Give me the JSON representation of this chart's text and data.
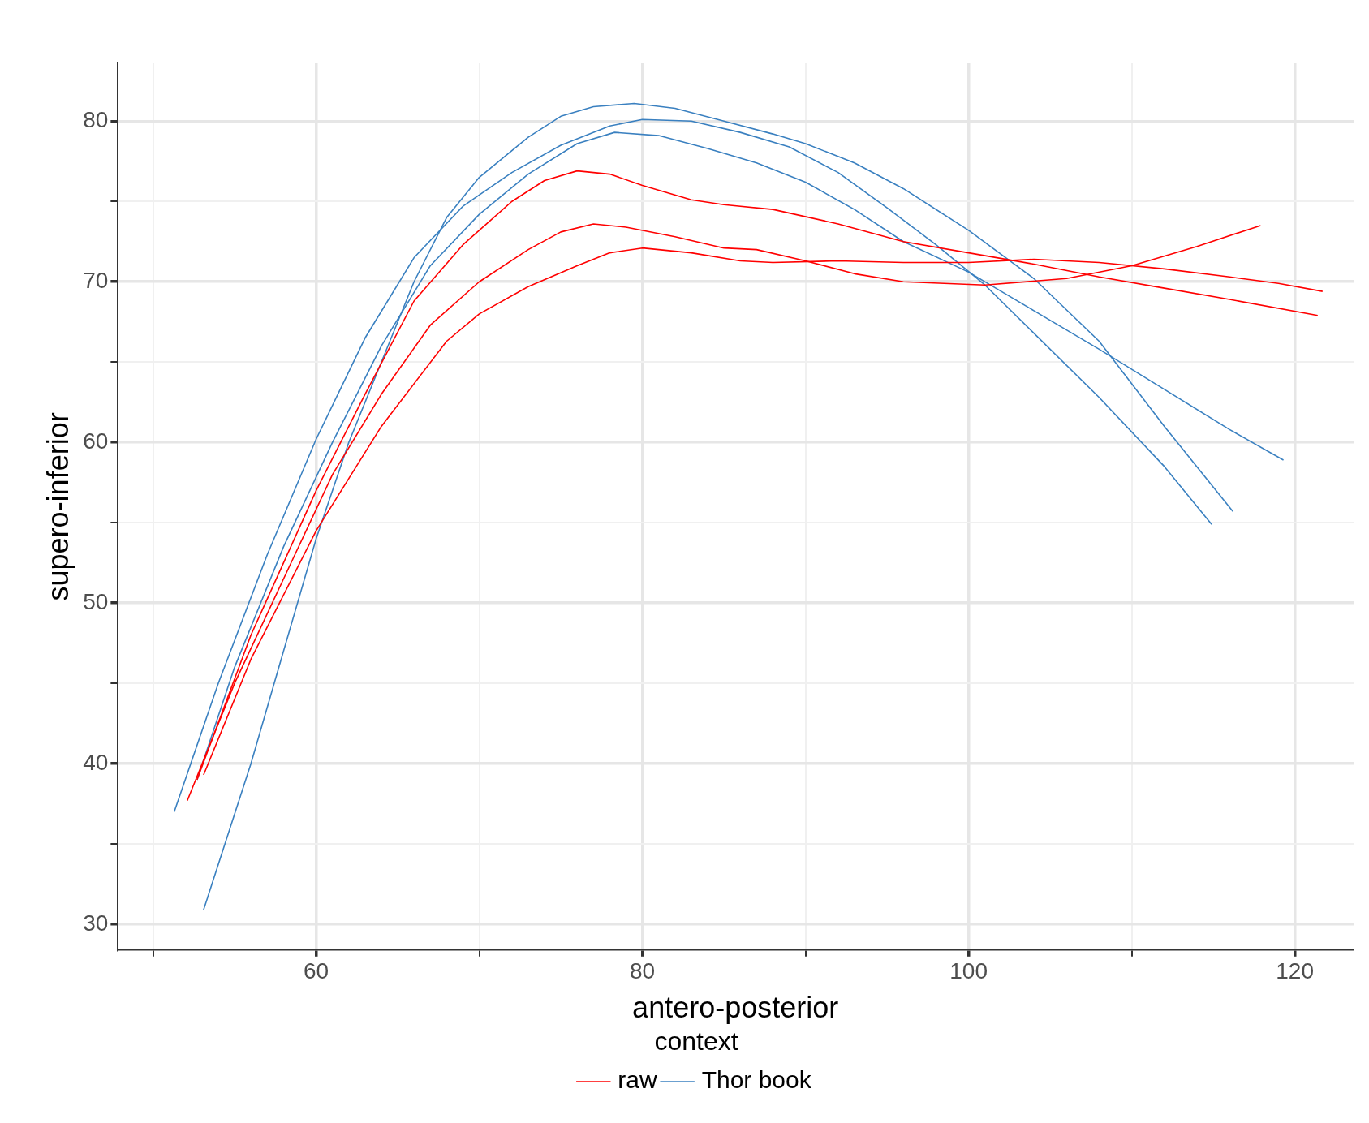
{
  "chart_data": {
    "type": "line",
    "xlabel": "antero-posterior",
    "ylabel": "supero-inferior",
    "legend_title": "context",
    "legend": "bottom",
    "grid": true,
    "xlim": [
      47.8,
      123.6
    ],
    "ylim": [
      28.4,
      83.6
    ],
    "xticks": [
      {
        "value": 50,
        "label": null
      },
      60,
      {
        "value": 70,
        "label": null
      },
      80,
      {
        "value": 90,
        "label": null
      },
      100,
      {
        "value": 110,
        "label": null
      },
      120
    ],
    "yticks": [
      30,
      {
        "value": 35,
        "label": null
      },
      40,
      {
        "value": 45,
        "label": null
      },
      50,
      {
        "value": 55,
        "label": null
      },
      60,
      {
        "value": 65,
        "label": null
      },
      70,
      {
        "value": 75,
        "label": null
      },
      80
    ],
    "series": [
      {
        "name": "raw",
        "color": "#ff0000",
        "x": [
          52.7,
          56,
          60,
          63,
          66,
          69,
          72,
          74,
          76,
          78,
          80,
          83,
          85,
          88,
          92,
          96,
          100,
          104,
          108,
          112,
          116,
          121.4
        ],
        "values": [
          39,
          48,
          57,
          63,
          68.8,
          72.3,
          75,
          76.3,
          76.9,
          76.7,
          76,
          75.1,
          74.8,
          74.5,
          73.6,
          72.5,
          71.8,
          71.1,
          70.3,
          69.6,
          68.9,
          67.9
        ]
      },
      {
        "color": "#ff0000",
        "x": [
          52.1,
          55,
          58,
          61,
          64,
          67,
          70,
          73,
          75,
          77,
          79,
          82,
          85,
          87,
          90,
          93,
          96,
          101,
          106,
          110,
          114,
          117.9
        ],
        "values": [
          37.7,
          45,
          51.5,
          58,
          63,
          67.3,
          70,
          72,
          73.1,
          73.6,
          73.4,
          72.8,
          72.1,
          72,
          71.3,
          70.5,
          70,
          69.8,
          70.2,
          71,
          72.2,
          73.5
        ]
      },
      {
        "color": "#ff0000",
        "x": [
          53.1,
          56,
          60,
          64,
          68,
          70,
          73,
          76,
          78,
          80,
          83,
          86,
          88,
          92,
          96,
          100,
          104,
          108,
          112,
          116,
          119,
          121.7
        ],
        "values": [
          39.3,
          46.5,
          54.5,
          61,
          66.3,
          68,
          69.7,
          71,
          71.8,
          72.1,
          71.8,
          71.3,
          71.2,
          71.3,
          71.2,
          71.2,
          71.4,
          71.2,
          70.8,
          70.3,
          69.9,
          69.4
        ]
      },
      {
        "name": "Thor book",
        "color": "#3a80c0",
        "x": [
          51.3,
          54,
          57,
          60,
          63,
          66,
          69,
          72,
          75,
          78,
          80,
          83,
          86,
          89,
          92,
          95,
          98,
          101,
          104,
          108,
          112,
          114.9
        ],
        "values": [
          37,
          45,
          53,
          60.2,
          66.5,
          71.5,
          74.7,
          76.8,
          78.5,
          79.7,
          80.1,
          80,
          79.3,
          78.4,
          76.8,
          74.6,
          72.3,
          69.8,
          66.8,
          62.8,
          58.5,
          54.9
        ]
      },
      {
        "color": "#3a80c0",
        "x": [
          52.7,
          55,
          58,
          61,
          64,
          67,
          70,
          73,
          76,
          78.3,
          81,
          84,
          87,
          90,
          93,
          96,
          100,
          104,
          108,
          112,
          116,
          119.3
        ],
        "values": [
          39,
          46,
          53.5,
          60,
          66,
          71,
          74.2,
          76.7,
          78.6,
          79.3,
          79.1,
          78.3,
          77.4,
          76.2,
          74.5,
          72.5,
          70.6,
          68.2,
          65.8,
          63.3,
          60.8,
          58.9
        ]
      },
      {
        "color": "#3a80c0",
        "x": [
          53.1,
          56,
          58,
          60,
          62,
          64,
          66,
          68,
          70,
          73,
          75,
          77,
          79.5,
          82,
          85,
          88,
          90,
          93,
          96,
          100,
          104,
          108,
          112,
          116.2
        ],
        "values": [
          30.9,
          40,
          47,
          54,
          60,
          65,
          70,
          74,
          76.5,
          79,
          80.3,
          80.9,
          81.1,
          80.8,
          80,
          79.2,
          78.6,
          77.4,
          75.8,
          73.2,
          70.2,
          66.3,
          61,
          55.7
        ]
      }
    ]
  }
}
